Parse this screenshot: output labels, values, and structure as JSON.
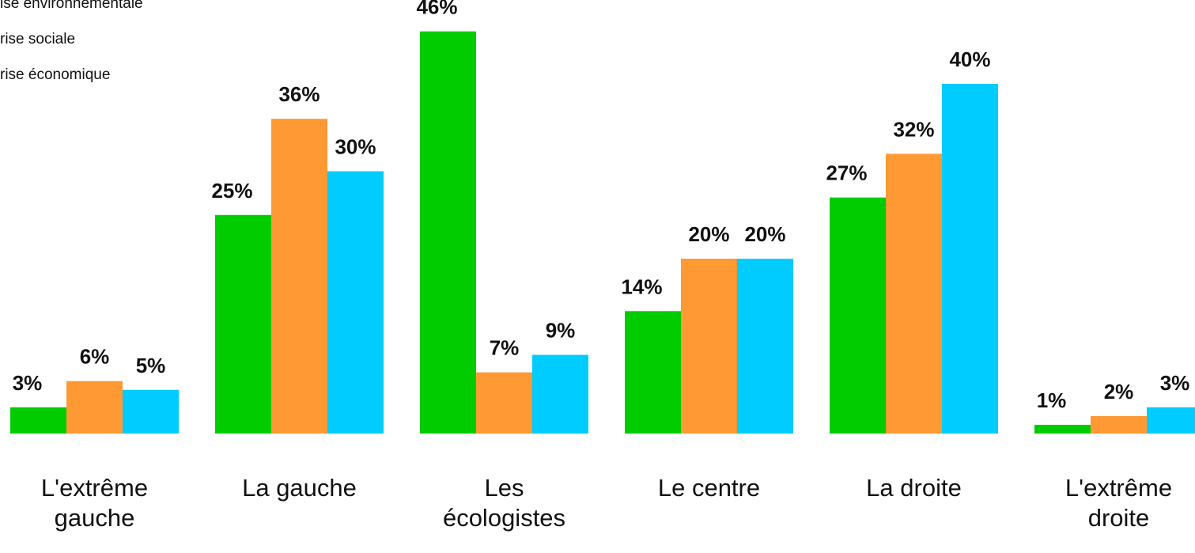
{
  "chart_data": {
    "type": "bar",
    "categories": [
      "L'extrême gauche",
      "La gauche",
      "Les écologistes",
      "Le centre",
      "La droite",
      "L'extrême droite"
    ],
    "series": [
      {
        "name": "ise environnementale",
        "color": "#00cc00",
        "values": [
          3,
          25,
          46,
          14,
          27,
          1
        ],
        "value_labels": [
          "3%",
          "25%",
          "46%",
          "14%",
          "27%",
          "1%"
        ]
      },
      {
        "name": "rise sociale",
        "color": "#ff9933",
        "values": [
          6,
          36,
          7,
          20,
          32,
          2
        ],
        "value_labels": [
          "6%",
          "36%",
          "7%",
          "20%",
          "32%",
          "2%"
        ]
      },
      {
        "name": "rise économique",
        "color": "#00ccff",
        "values": [
          5,
          30,
          9,
          20,
          40,
          3
        ],
        "value_labels": [
          "5%",
          "30%",
          "9%",
          "20%",
          "40%",
          "3%"
        ]
      }
    ],
    "legend": "top-left"
  }
}
